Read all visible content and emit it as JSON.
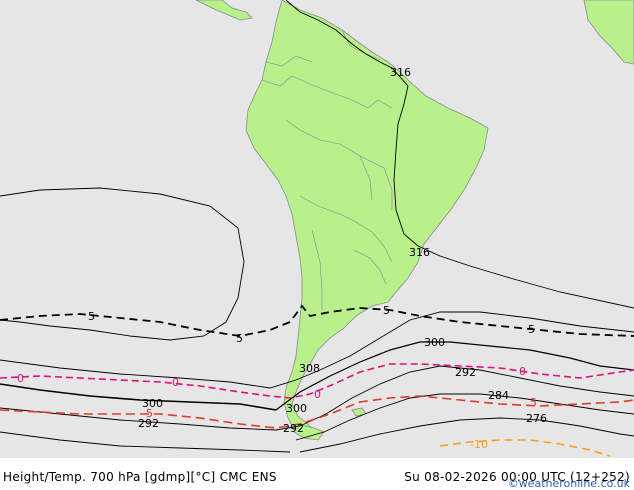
{
  "colors": {
    "ocean": "#e6e6e6",
    "land": "#b8f08c",
    "coast": "#8a8a8a",
    "height_contour": "#000000",
    "temp_minus5": "#000000",
    "temp_0": "#e0117f",
    "temp_minus5_low": "#e0392e",
    "temp_minus10": "#f5a023",
    "credit": "#2a5fb0"
  },
  "map": {
    "height_labels": {
      "h316_north": "316",
      "h316_east": "316",
      "h308": "308",
      "h300_west": "300",
      "h300_mid": "300",
      "h300_east": "300",
      "h292_west": "292",
      "h292_mid": "292",
      "h292_east": "292",
      "h284": "284",
      "h276": "276"
    },
    "temp_labels": {
      "m5_west": "5",
      "m5_mid": "5",
      "m5_center": "5",
      "m5_east": "5",
      "zero_west": "0",
      "zero_mid": "0",
      "zero_center": "0",
      "zero_east": "0",
      "m5_red_west": "5",
      "m5_red_east": "5",
      "m10": "-10"
    }
  },
  "footer": {
    "title": "Height/Temp. 700 hPa [gdmp][°C] CMC ENS",
    "time": "Su 08-02-2026 00:00 UTC (12+252)",
    "credit": "©weatheronline.co.uk"
  }
}
